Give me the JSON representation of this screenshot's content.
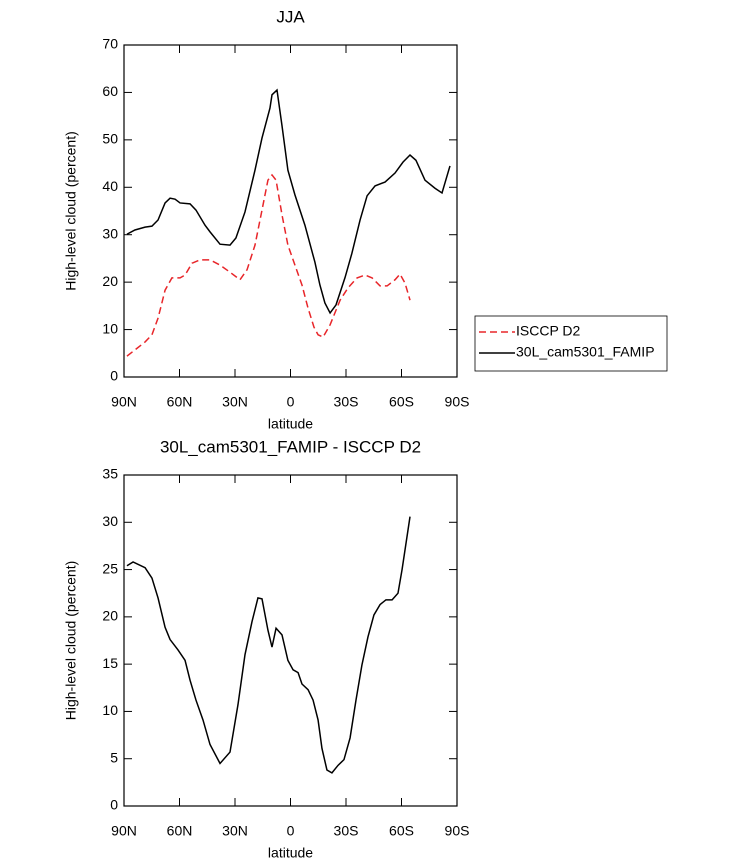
{
  "chart_data": [
    {
      "type": "line",
      "title": "JJA",
      "xlabel": "latitude",
      "ylabel": "High-level cloud (percent)",
      "xlim": [
        90,
        -90
      ],
      "ylim": [
        0,
        70
      ],
      "xticks": [
        {
          "value": 90,
          "label": "90N"
        },
        {
          "value": 60,
          "label": "60N"
        },
        {
          "value": 30,
          "label": "30N"
        },
        0,
        {
          "value": -30,
          "label": "30S"
        },
        {
          "value": -60,
          "label": "60S"
        },
        {
          "value": -90,
          "label": "90S"
        }
      ],
      "yticks": [
        0,
        10,
        20,
        30,
        40,
        50,
        60,
        70
      ],
      "legend": "right",
      "series": [
        {
          "name": "ISCCP D2",
          "color": "#e8262a",
          "dash": true,
          "x": [
            88.4,
            84.1,
            78.6,
            74.9,
            71.6,
            67.8,
            64.1,
            59.7,
            57,
            53.2,
            48.9,
            43.5,
            38.1,
            32.7,
            27.3,
            23.5,
            19.2,
            15.4,
            12.2,
            10,
            7.8,
            4.6,
            1.4,
            -2.4,
            -6.2,
            -9.5,
            -12.7,
            -14.9,
            -17.6,
            -21.4,
            -26.8,
            -31.1,
            -36,
            -40.3,
            -44.1,
            -48.4,
            -52.2,
            -56.5,
            -59.2,
            -61.9,
            -64.6
          ],
          "values": [
            4.4,
            5.7,
            7.4,
            8.9,
            12.4,
            18.3,
            20.9,
            20.9,
            21.5,
            24,
            24.7,
            24.7,
            23.6,
            22.1,
            20.5,
            22.6,
            27.8,
            35.2,
            41.5,
            42.6,
            41.5,
            34.2,
            27.8,
            23.6,
            19.4,
            14.5,
            10.5,
            8.9,
            8.4,
            11,
            16.2,
            18.8,
            20.9,
            21.5,
            20.9,
            19.2,
            19.2,
            20.5,
            21.7,
            19.8,
            16.2
          ]
        },
        {
          "name": "30L_cam5301_FAMIP",
          "color": "#000000",
          "dash": false,
          "x": [
            88.4,
            84.1,
            78.6,
            74.9,
            71.6,
            67.8,
            65.1,
            62.4,
            59.7,
            54.3,
            51.1,
            46.2,
            43.5,
            38.1,
            32.7,
            29.5,
            24.6,
            19.2,
            15.4,
            11.1,
            10,
            7.3,
            4.6,
            1.4,
            -2.4,
            -7.8,
            -13.2,
            -15.9,
            -18.6,
            -21.4,
            -24.6,
            -29.5,
            -33.2,
            -37.6,
            -41.4,
            -45.7,
            -51.1,
            -56.5,
            -60.8,
            -64.6,
            -67.8,
            -72.7,
            -78.1,
            -81.9,
            -86.2
          ],
          "values": [
            30.1,
            31,
            31.6,
            31.8,
            33.1,
            36.7,
            37.7,
            37.5,
            36.7,
            36.5,
            35.2,
            32,
            30.6,
            28,
            27.8,
            29.3,
            34.8,
            43.6,
            50.4,
            56.7,
            59.5,
            60.5,
            53,
            43.6,
            38.4,
            32,
            24.2,
            19.4,
            15.6,
            13.5,
            15.2,
            21,
            26.1,
            33.1,
            38.2,
            40.3,
            41.1,
            43,
            45.3,
            46.8,
            45.7,
            41.5,
            39.8,
            38.8,
            44.5
          ]
        }
      ]
    },
    {
      "type": "line",
      "title": "30L_cam5301_FAMIP - ISCCP D2",
      "xlabel": "latitude",
      "ylabel": "High-level cloud (percent)",
      "xlim": [
        90,
        -90
      ],
      "ylim": [
        0,
        35
      ],
      "xticks": [
        {
          "value": 90,
          "label": "90N"
        },
        {
          "value": 60,
          "label": "60N"
        },
        {
          "value": 30,
          "label": "30N"
        },
        0,
        {
          "value": -30,
          "label": "30S"
        },
        {
          "value": -60,
          "label": "60S"
        },
        {
          "value": -90,
          "label": "90S"
        }
      ],
      "yticks": [
        0,
        5,
        10,
        15,
        20,
        25,
        30,
        35
      ],
      "series": [
        {
          "color": "#000000",
          "dash": false,
          "x": [
            88.4,
            85.1,
            78.6,
            74.9,
            71.6,
            67.8,
            65.1,
            60.8,
            57,
            54.3,
            51.1,
            47.3,
            43.5,
            38.1,
            32.7,
            28.4,
            24.6,
            20.8,
            17.6,
            15.4,
            12.2,
            10,
            7.8,
            4.6,
            1.4,
            -1.4,
            -4.1,
            -6.2,
            -9.5,
            -12.2,
            -14.9,
            -17,
            -19.7,
            -22.4,
            -25.7,
            -28.9,
            -32.2,
            -35.4,
            -38.6,
            -41.9,
            -45.1,
            -48.4,
            -51.6,
            -54.9,
            -58.1,
            -60.3,
            -64.6
          ],
          "values": [
            25.4,
            25.8,
            25.2,
            24.1,
            22,
            18.9,
            17.6,
            16.5,
            15.4,
            13.3,
            11.2,
            9.1,
            6.5,
            4.5,
            5.7,
            10.7,
            16,
            19.5,
            22,
            21.9,
            18.6,
            16.8,
            18.8,
            18.1,
            15.4,
            14.4,
            14.1,
            12.9,
            12.3,
            11.2,
            9.1,
            6.1,
            3.8,
            3.5,
            4.3,
            4.9,
            7.2,
            11.2,
            14.9,
            17.9,
            20.2,
            21.3,
            21.8,
            21.8,
            22.5,
            25,
            30.6
          ]
        }
      ]
    }
  ]
}
